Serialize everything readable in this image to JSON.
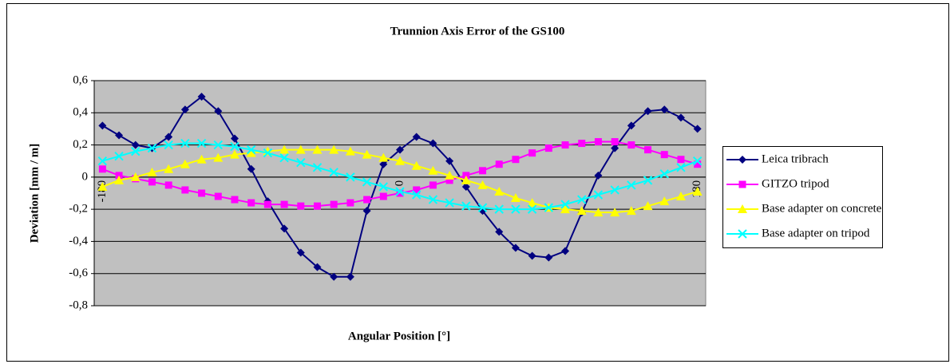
{
  "chart_data": {
    "type": "line",
    "title": "Trunnion Axis Error of the GS100",
    "x_label": "Angular Position [°]",
    "y_label": "Deviation [mm / m]",
    "categories": [
      "-180",
      null,
      null,
      null,
      null,
      null,
      null,
      null,
      null,
      null,
      null,
      null,
      null,
      null,
      null,
      null,
      null,
      null,
      "0",
      null,
      null,
      null,
      null,
      null,
      null,
      null,
      null,
      null,
      null,
      null,
      null,
      null,
      null,
      null,
      null,
      null,
      "180"
    ],
    "ylim": [
      -0.8,
      0.6
    ],
    "yticks": [
      {
        "value": -0.8,
        "label": "-0,8"
      },
      {
        "value": -0.6,
        "label": "-0,6"
      },
      {
        "value": -0.4,
        "label": "-0,4"
      },
      {
        "value": -0.2,
        "label": "-0,2"
      },
      0,
      {
        "value": 0.2,
        "label": "0,2"
      },
      {
        "value": 0.4,
        "label": "0,4"
      },
      {
        "value": 0.6,
        "label": "0,6"
      }
    ],
    "grid": true,
    "legend": "right",
    "series": [
      {
        "name": "Leica tribrach",
        "color": "#000080",
        "marker": "diamond",
        "values": [
          0.32,
          0.26,
          0.2,
          0.18,
          0.25,
          0.42,
          0.5,
          0.41,
          0.24,
          0.05,
          -0.15,
          -0.32,
          -0.47,
          -0.56,
          -0.62,
          -0.62,
          -0.21,
          0.08,
          0.17,
          0.25,
          0.21,
          0.1,
          -0.06,
          -0.21,
          -0.34,
          -0.44,
          -0.49,
          -0.5,
          -0.46,
          -0.22,
          0.01,
          0.18,
          0.32,
          0.41,
          0.42,
          0.37,
          0.3
        ]
      },
      {
        "name": "GITZO tripod",
        "color": "#ff00ff",
        "marker": "square",
        "values": [
          0.05,
          0.01,
          -0.01,
          -0.03,
          -0.05,
          -0.08,
          -0.1,
          -0.12,
          -0.14,
          -0.16,
          -0.17,
          -0.17,
          -0.18,
          -0.18,
          -0.17,
          -0.16,
          -0.14,
          -0.12,
          -0.1,
          -0.08,
          -0.05,
          -0.02,
          0.01,
          0.04,
          0.08,
          0.11,
          0.15,
          0.18,
          0.2,
          0.21,
          0.22,
          0.22,
          0.2,
          0.17,
          0.14,
          0.11,
          0.08
        ]
      },
      {
        "name": "Base adapter on concrete",
        "color": "#ffff00",
        "marker": "triangle",
        "values": [
          -0.06,
          -0.02,
          0.0,
          0.03,
          0.05,
          0.08,
          0.11,
          0.12,
          0.14,
          0.15,
          0.16,
          0.17,
          0.17,
          0.17,
          0.17,
          0.16,
          0.14,
          0.12,
          0.1,
          0.07,
          0.04,
          0.01,
          -0.02,
          -0.05,
          -0.09,
          -0.13,
          -0.16,
          -0.19,
          -0.2,
          -0.21,
          -0.22,
          -0.22,
          -0.21,
          -0.18,
          -0.15,
          -0.12,
          -0.09
        ]
      },
      {
        "name": "Base adapter on tripod",
        "color": "#00ffff",
        "marker": "x",
        "values": [
          0.1,
          0.13,
          0.16,
          0.18,
          0.2,
          0.21,
          0.21,
          0.2,
          0.19,
          0.17,
          0.15,
          0.12,
          0.09,
          0.06,
          0.03,
          0.0,
          -0.03,
          -0.06,
          -0.09,
          -0.11,
          -0.14,
          -0.16,
          -0.18,
          -0.19,
          -0.2,
          -0.2,
          -0.2,
          -0.19,
          -0.17,
          -0.14,
          -0.11,
          -0.08,
          -0.05,
          -0.02,
          0.02,
          0.06,
          0.1
        ]
      }
    ]
  }
}
